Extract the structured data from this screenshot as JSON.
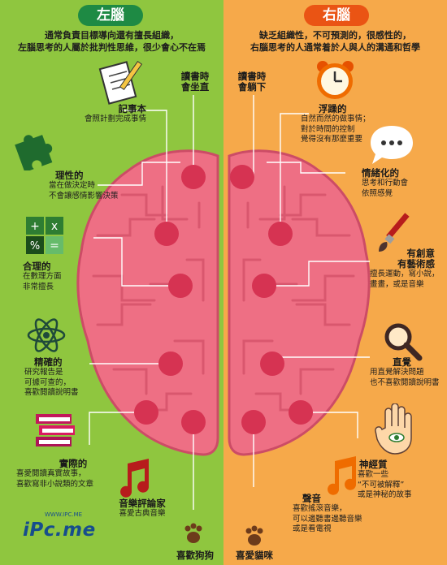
{
  "colors": {
    "left_bg": "#8fc63f",
    "right_bg": "#f6a94a",
    "left_title": "#1e8a44",
    "right_title": "#ea5414",
    "brain": "#ee6f84",
    "brain_dark": "#cc4c66",
    "node": "#d63352",
    "line": "#ffffff"
  },
  "left": {
    "title": "左腦",
    "intro": [
      "通常負責目標導向還有擅長組織，",
      "左腦思考的人屬於批判性思維，很少會心不在焉"
    ],
    "items": [
      {
        "title": "讀書時\n會坐直",
        "desc": "",
        "icon": ""
      },
      {
        "title": "記事本",
        "desc": "會照計劃完成事情",
        "icon": "notepad-pencil-icon"
      },
      {
        "title": "理性的",
        "desc": "當在做決定時\n不會讓感情影響決策",
        "icon": "puzzle-icon"
      },
      {
        "title": "合理的",
        "desc": "在數理方面\n非常擅長",
        "icon": "calculator-icon"
      },
      {
        "title": "精確的",
        "desc": "研究報告是\n可據可查的，\n喜歡閱讀說明書",
        "icon": "atom-icon"
      },
      {
        "title": "實際的",
        "desc": "喜愛閱讀真實故事，\n喜歡寫非小說類的文章",
        "icon": "books-icon"
      },
      {
        "title": "音樂評論家",
        "desc": "喜愛古典音樂",
        "icon": "music-note-icon"
      },
      {
        "title": "喜歡狗狗",
        "desc": "",
        "icon": "paw-icon"
      }
    ]
  },
  "right": {
    "title": "右腦",
    "intro": [
      "缺乏組織性，不可預測的，很感性的，",
      "右腦思考的人通常着於人與人的溝通和哲學"
    ],
    "items": [
      {
        "title": "讀書時\n會躺下",
        "desc": "",
        "icon": ""
      },
      {
        "title": "浮躁的",
        "desc": "自然而然的做事情；\n對於時間的控制\n覺得沒有那麼重要",
        "icon": "alarm-clock-icon"
      },
      {
        "title": "情緒化的",
        "desc": "思考和行動會\n依照感覺",
        "icon": "speech-bubble-icon"
      },
      {
        "title": "有創意\n有藝術感",
        "desc": "擅長運動，寫小說，\n畫畫，或是音樂",
        "icon": "paintbrush-icon"
      },
      {
        "title": "直覺",
        "desc": "用直覺解決問題\n也不喜歡閱讀說明書",
        "icon": "magnifier-icon"
      },
      {
        "title": "神經質",
        "desc": "喜歡一些\n“不可被解釋”\n或是神秘的故事",
        "icon": "hand-eye-icon"
      },
      {
        "title": "聲音",
        "desc": "喜歡搖滾音樂，\n可以邊聽書邊聽音樂\n或是看電視",
        "icon": "music-note-icon"
      },
      {
        "title": "喜愛貓咪",
        "desc": "",
        "icon": "paw-icon"
      }
    ]
  },
  "logo": {
    "text": "iPc.me",
    "url": "WWW.IPC.ME"
  }
}
